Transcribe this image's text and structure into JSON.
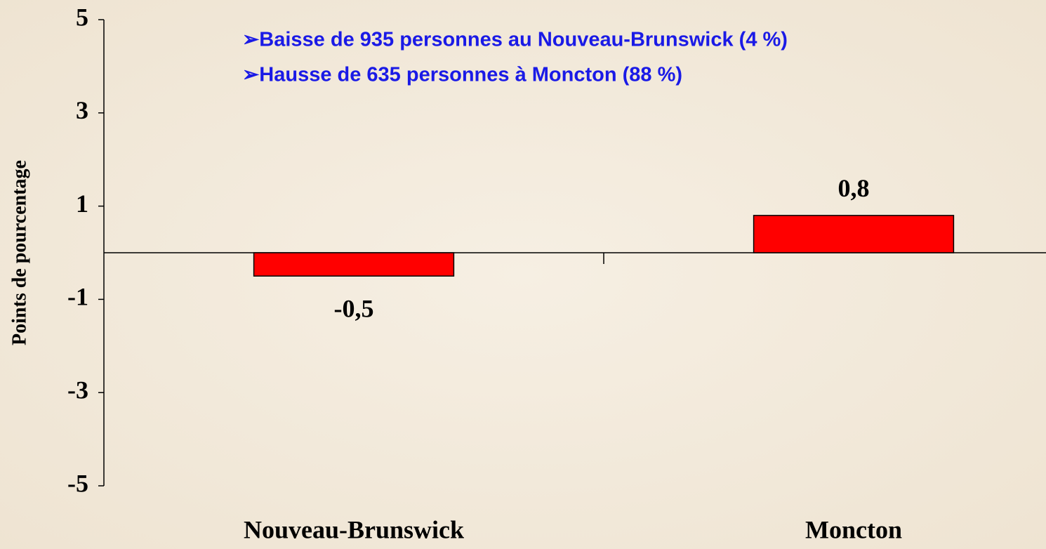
{
  "chart_data": {
    "type": "bar",
    "y_axis_label": "Points de pourcentage",
    "annotations": [
      "➢Baisse de 935 personnes au Nouveau-Brunswick (4 %)",
      "➢Hausse de 635 personnes à Moncton (88 %)"
    ],
    "categories": [
      "Nouveau-Brunswick",
      "Moncton"
    ],
    "values": [
      -0.5,
      0.8
    ],
    "value_labels": [
      "-0,5",
      "0,8"
    ],
    "color": "#ff0000",
    "ylim": [
      -5,
      5
    ],
    "yticks": [
      -5,
      -3,
      -1,
      1,
      3,
      5
    ],
    "grid": false
  }
}
